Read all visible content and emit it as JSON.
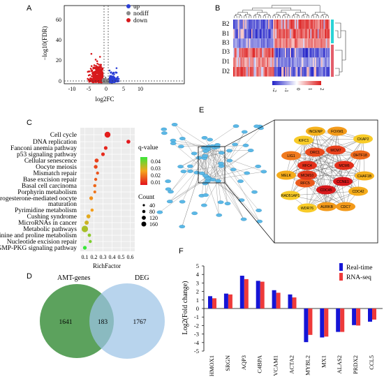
{
  "panels": {
    "A": {
      "letter": "A",
      "xlabel": "log2FC",
      "ylabel": "−log10(FDR)",
      "x_ticks": [
        "-10",
        "-5",
        "0",
        "5",
        "10"
      ],
      "y_ticks": [
        "0",
        "20",
        "40",
        "60"
      ],
      "legend": [
        {
          "label": "up",
          "color": "#2b3fd6"
        },
        {
          "label": "nodiff",
          "color": "#8a8a8a"
        },
        {
          "label": "down",
          "color": "#d7191c"
        }
      ]
    },
    "B": {
      "letter": "B",
      "rows": [
        "B2",
        "B1",
        "B3",
        "D3",
        "D1",
        "D2"
      ],
      "scale_ticks": [
        "2",
        "1",
        "0",
        "-1",
        "-2"
      ]
    },
    "C": {
      "letter": "C",
      "xlabel": "RichFactor",
      "x_ticks": [
        "0.1",
        "0.2",
        "0.3",
        "0.4",
        "0.5",
        "0.6"
      ],
      "pathways": [
        "Cell cycle",
        "DNA replication",
        "Fanconi anemia pathway",
        "p53 signaling pathway",
        "Cellular senescence",
        "Oocyte meiosis",
        "Mismatch repair",
        "Base excision repair",
        "Basal cell carcinoma",
        "Porphyrin metabolism",
        "Progesterone-mediated oocyte",
        "maturation",
        "Pyrimidine metabolism",
        "Cushing syndrome",
        "MicroRNAs in cancer",
        "Metabolic pathways",
        "Arginine and proline metabolism",
        "Nucleotide excision repair",
        "cGMP-PKG signaling pathway"
      ],
      "qvalue_title": "q-value",
      "qvalue_ticks": [
        "0.04",
        "0.03",
        "0.02",
        "0.01"
      ],
      "count_title": "Count",
      "count_ticks": [
        "40",
        "80",
        "120",
        "160"
      ]
    },
    "D": {
      "letter": "D",
      "left_label": "AMT-genes",
      "right_label": "DEG",
      "left_only": "1641",
      "overlap": "183",
      "right_only": "1767"
    },
    "E": {
      "letter": "E",
      "hub_genes": [
        "INCENP",
        "FOXM1",
        "CKAP2",
        "KIFC1",
        "LIG1",
        "ORC1",
        "MCM7",
        "DHTF18",
        "RFC4",
        "MCM6",
        "CCNE1",
        "MELK",
        "RFC5",
        "CDC45",
        "MCM10",
        "CHAF1B",
        "RAD51AP1",
        "CDC42",
        "WDR76",
        "AURKB",
        "CDC7"
      ],
      "hub_colors": {
        "INCENP": "#f5b11c",
        "FOXM1": "#f39a1a",
        "CKAP2": "#f8cb28",
        "KIFC1": "#f8cb28",
        "LIG1": "#f07a1e",
        "ORC1": "#ea4a1c",
        "MCM7": "#e8401c",
        "DHTF18": "#ee6a1c",
        "RFC4": "#e3301b",
        "MCM6": "#e3301b",
        "CCNE1": "#d8191c",
        "MELK": "#f5ac1c",
        "RFC5": "#eb5a1c",
        "CDC45": "#d8191c",
        "MCM10": "#e23a1c",
        "CHAF1B": "#f5b11c",
        "RAD51AP1": "#f8cb28",
        "CDC42": "#f5ac1c",
        "WDR76": "#f8cb28",
        "AURKB": "#f39a1a",
        "CDC7": "#f39a1a"
      }
    },
    "F": {
      "letter": "F",
      "ylabel": "Log2(Fold change)"
    }
  },
  "chart_data": {
    "type": "bar",
    "categories": [
      "HMOX1",
      "SRGN",
      "AQP3",
      "C4BPA",
      "VCAM1",
      "ACTA2",
      "MYBL2",
      "MX1",
      "ALAS2",
      "PRDX2",
      "CCL5"
    ],
    "series": [
      {
        "name": "Real-time",
        "color": "#1515d6",
        "values": [
          1.45,
          1.75,
          3.85,
          3.25,
          2.15,
          1.65,
          -3.95,
          -3.4,
          -2.75,
          -1.95,
          -1.55
        ]
      },
      {
        "name": "RNA-seq",
        "color": "#ee3a3a",
        "values": [
          1.2,
          1.65,
          3.45,
          3.15,
          1.85,
          1.3,
          -3.1,
          -3.3,
          -2.75,
          -2.0,
          -1.3
        ]
      }
    ],
    "ylim": [
      -5,
      5
    ],
    "y_ticks": [
      "5",
      "4",
      "3",
      "2",
      "1",
      "0",
      "-1",
      "-2",
      "-3",
      "-4",
      "-5"
    ]
  }
}
